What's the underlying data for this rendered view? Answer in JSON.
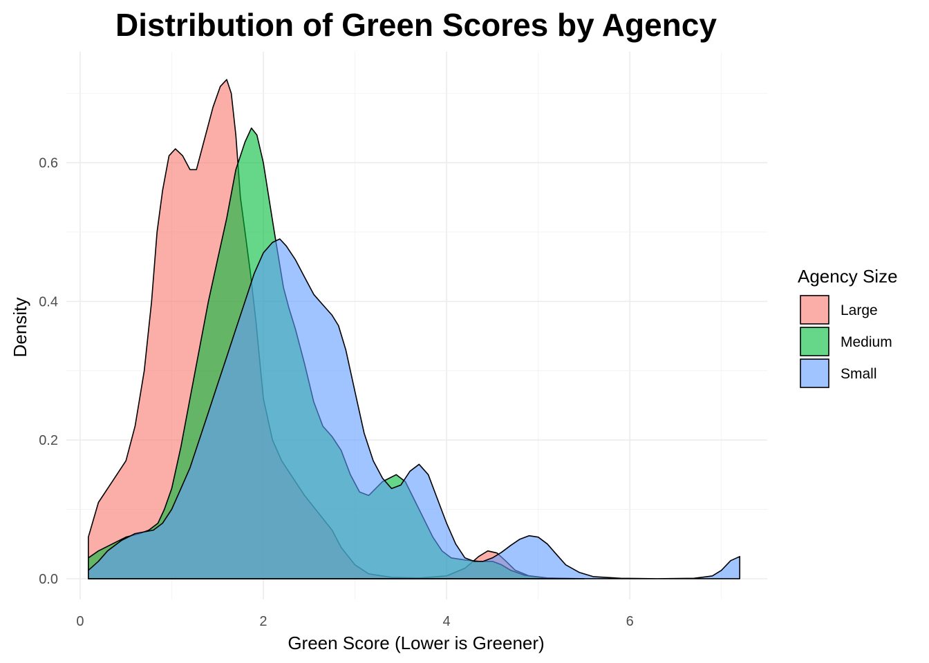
{
  "chart_data": {
    "type": "area",
    "title": "Distribution of Green Scores by Agency",
    "xlabel": "Green Score (Lower is Greener)",
    "ylabel": "Density",
    "xlim": [
      -0.15,
      7.5
    ],
    "ylim": [
      -0.03,
      0.76
    ],
    "x_ticks": [
      0,
      2,
      4,
      6
    ],
    "x_tick_labels": [
      "0",
      "2",
      "4",
      "6"
    ],
    "y_ticks": [
      0.0,
      0.2,
      0.4,
      0.6
    ],
    "y_tick_labels": [
      "0.0",
      "0.2",
      "0.4",
      "0.6"
    ],
    "grid": true,
    "legend": {
      "title": "Agency Size",
      "position": "right"
    },
    "series": [
      {
        "name": "Large",
        "color": "#F8766D",
        "points": [
          [
            0.09,
            0.06
          ],
          [
            0.2,
            0.11
          ],
          [
            0.35,
            0.14
          ],
          [
            0.5,
            0.17
          ],
          [
            0.6,
            0.22
          ],
          [
            0.7,
            0.3
          ],
          [
            0.78,
            0.4
          ],
          [
            0.84,
            0.5
          ],
          [
            0.9,
            0.56
          ],
          [
            0.97,
            0.61
          ],
          [
            1.04,
            0.62
          ],
          [
            1.12,
            0.61
          ],
          [
            1.2,
            0.59
          ],
          [
            1.27,
            0.59
          ],
          [
            1.35,
            0.63
          ],
          [
            1.45,
            0.68
          ],
          [
            1.53,
            0.71
          ],
          [
            1.6,
            0.72
          ],
          [
            1.65,
            0.7
          ],
          [
            1.7,
            0.64
          ],
          [
            1.75,
            0.55
          ],
          [
            1.8,
            0.5
          ],
          [
            1.86,
            0.44
          ],
          [
            1.92,
            0.37
          ],
          [
            2.0,
            0.26
          ],
          [
            2.1,
            0.2
          ],
          [
            2.2,
            0.17
          ],
          [
            2.3,
            0.15
          ],
          [
            2.45,
            0.12
          ],
          [
            2.6,
            0.095
          ],
          [
            2.75,
            0.07
          ],
          [
            2.85,
            0.045
          ],
          [
            3.0,
            0.02
          ],
          [
            3.15,
            0.007
          ],
          [
            3.4,
            0.002
          ],
          [
            3.7,
            0.001
          ],
          [
            4.0,
            0.004
          ],
          [
            4.2,
            0.015
          ],
          [
            4.35,
            0.032
          ],
          [
            4.45,
            0.04
          ],
          [
            4.55,
            0.037
          ],
          [
            4.65,
            0.025
          ],
          [
            4.75,
            0.012
          ],
          [
            4.9,
            0.004
          ],
          [
            5.1,
            0.001
          ],
          [
            5.4,
            0.0
          ]
        ]
      },
      {
        "name": "Medium",
        "color": "#00BA38",
        "points": [
          [
            0.09,
            0.03
          ],
          [
            0.2,
            0.04
          ],
          [
            0.35,
            0.05
          ],
          [
            0.5,
            0.06
          ],
          [
            0.65,
            0.065
          ],
          [
            0.75,
            0.07
          ],
          [
            0.85,
            0.08
          ],
          [
            0.92,
            0.1
          ],
          [
            1.0,
            0.13
          ],
          [
            1.1,
            0.19
          ],
          [
            1.2,
            0.26
          ],
          [
            1.3,
            0.33
          ],
          [
            1.4,
            0.4
          ],
          [
            1.5,
            0.46
          ],
          [
            1.6,
            0.52
          ],
          [
            1.7,
            0.59
          ],
          [
            1.8,
            0.63
          ],
          [
            1.87,
            0.65
          ],
          [
            1.93,
            0.64
          ],
          [
            2.0,
            0.6
          ],
          [
            2.06,
            0.55
          ],
          [
            2.12,
            0.5
          ],
          [
            2.17,
            0.46
          ],
          [
            2.22,
            0.42
          ],
          [
            2.28,
            0.39
          ],
          [
            2.35,
            0.36
          ],
          [
            2.45,
            0.31
          ],
          [
            2.55,
            0.255
          ],
          [
            2.65,
            0.22
          ],
          [
            2.75,
            0.205
          ],
          [
            2.85,
            0.185
          ],
          [
            2.95,
            0.15
          ],
          [
            3.05,
            0.125
          ],
          [
            3.15,
            0.12
          ],
          [
            3.3,
            0.14
          ],
          [
            3.45,
            0.15
          ],
          [
            3.55,
            0.14
          ],
          [
            3.7,
            0.1
          ],
          [
            3.85,
            0.06
          ],
          [
            3.95,
            0.04
          ],
          [
            4.05,
            0.03
          ],
          [
            4.2,
            0.027
          ],
          [
            4.35,
            0.025
          ],
          [
            4.5,
            0.025
          ],
          [
            4.6,
            0.02
          ],
          [
            4.7,
            0.012
          ],
          [
            4.85,
            0.005
          ],
          [
            5.1,
            0.001
          ],
          [
            5.5,
            0.0
          ]
        ]
      },
      {
        "name": "Small",
        "color": "#619CFF",
        "points": [
          [
            0.09,
            0.012
          ],
          [
            0.2,
            0.025
          ],
          [
            0.3,
            0.04
          ],
          [
            0.45,
            0.055
          ],
          [
            0.6,
            0.065
          ],
          [
            0.8,
            0.07
          ],
          [
            0.9,
            0.08
          ],
          [
            1.0,
            0.1
          ],
          [
            1.1,
            0.13
          ],
          [
            1.2,
            0.16
          ],
          [
            1.3,
            0.2
          ],
          [
            1.4,
            0.24
          ],
          [
            1.5,
            0.28
          ],
          [
            1.6,
            0.32
          ],
          [
            1.7,
            0.36
          ],
          [
            1.8,
            0.4
          ],
          [
            1.9,
            0.44
          ],
          [
            2.0,
            0.47
          ],
          [
            2.1,
            0.485
          ],
          [
            2.18,
            0.49
          ],
          [
            2.25,
            0.48
          ],
          [
            2.35,
            0.46
          ],
          [
            2.45,
            0.435
          ],
          [
            2.55,
            0.41
          ],
          [
            2.65,
            0.395
          ],
          [
            2.75,
            0.38
          ],
          [
            2.82,
            0.365
          ],
          [
            2.9,
            0.33
          ],
          [
            3.0,
            0.27
          ],
          [
            3.1,
            0.21
          ],
          [
            3.2,
            0.17
          ],
          [
            3.3,
            0.145
          ],
          [
            3.4,
            0.13
          ],
          [
            3.5,
            0.135
          ],
          [
            3.6,
            0.155
          ],
          [
            3.7,
            0.165
          ],
          [
            3.8,
            0.15
          ],
          [
            3.9,
            0.115
          ],
          [
            4.0,
            0.08
          ],
          [
            4.1,
            0.05
          ],
          [
            4.2,
            0.03
          ],
          [
            4.3,
            0.025
          ],
          [
            4.4,
            0.025
          ],
          [
            4.5,
            0.03
          ],
          [
            4.6,
            0.038
          ],
          [
            4.7,
            0.048
          ],
          [
            4.8,
            0.057
          ],
          [
            4.9,
            0.062
          ],
          [
            5.0,
            0.06
          ],
          [
            5.1,
            0.05
          ],
          [
            5.2,
            0.035
          ],
          [
            5.3,
            0.02
          ],
          [
            5.45,
            0.009
          ],
          [
            5.6,
            0.003
          ],
          [
            5.9,
            0.0006
          ],
          [
            6.3,
            0.0
          ],
          [
            6.7,
            0.0006
          ],
          [
            6.9,
            0.004
          ],
          [
            7.0,
            0.012
          ],
          [
            7.1,
            0.026
          ],
          [
            7.2,
            0.032
          ]
        ]
      }
    ]
  }
}
